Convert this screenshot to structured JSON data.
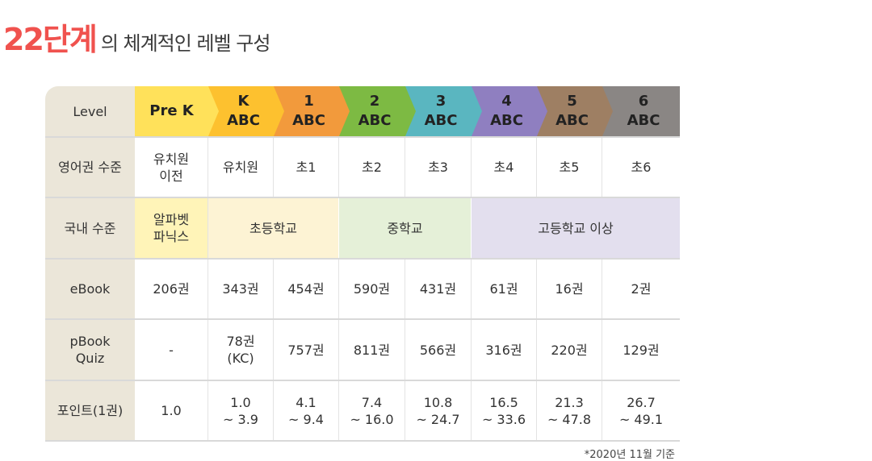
{
  "title": {
    "highlight": "22단계",
    "rest": "의 체계적인 레벨 구성"
  },
  "colors": {
    "prek": "#ffe15a",
    "k": "#fdc12f",
    "l1": "#f29a3c",
    "l2": "#7dba43",
    "l3": "#5ab6c0",
    "l4": "#8f7fc0",
    "l5": "#9e7f63",
    "l6": "#8a8684",
    "label_bg": "#ebe6d9",
    "elem_bg": "#fdf3d4",
    "middle_bg": "#e5f0d8",
    "high_bg": "#e3dfee"
  },
  "table": {
    "row_labels": [
      "Level",
      "영어권 수준",
      "국내 수준",
      "eBook",
      "pBook\nQuiz",
      "포인트(1권)"
    ],
    "levels": [
      "Pre K",
      "K\nABC",
      "1\nABC",
      "2\nABC",
      "3\nABC",
      "4\nABC",
      "5\nABC",
      "6\nABC"
    ],
    "english_level": [
      "유치원\n이전",
      "유치원",
      "초1",
      "초2",
      "초3",
      "초4",
      "초5",
      "초6"
    ],
    "domestic": {
      "prek": "알파벳\n파닉스",
      "elementary": "초등학교",
      "middle": "중학교",
      "high": "고등학교 이상"
    },
    "ebook": [
      "206권",
      "343권",
      "454권",
      "590권",
      "431권",
      "61권",
      "16권",
      "2권"
    ],
    "pbook": [
      "-",
      "78권\n(KC)",
      "757권",
      "811권",
      "566권",
      "316권",
      "220권",
      "129권"
    ],
    "points": [
      "1.0",
      "1.0\n~ 3.9",
      "4.1\n~ 9.4",
      "7.4\n~ 16.0",
      "10.8\n~ 24.7",
      "16.5\n~ 33.6",
      "21.3\n~ 47.8",
      "26.7\n~ 49.1"
    ]
  },
  "footnote": "*2020년 11월 기준"
}
